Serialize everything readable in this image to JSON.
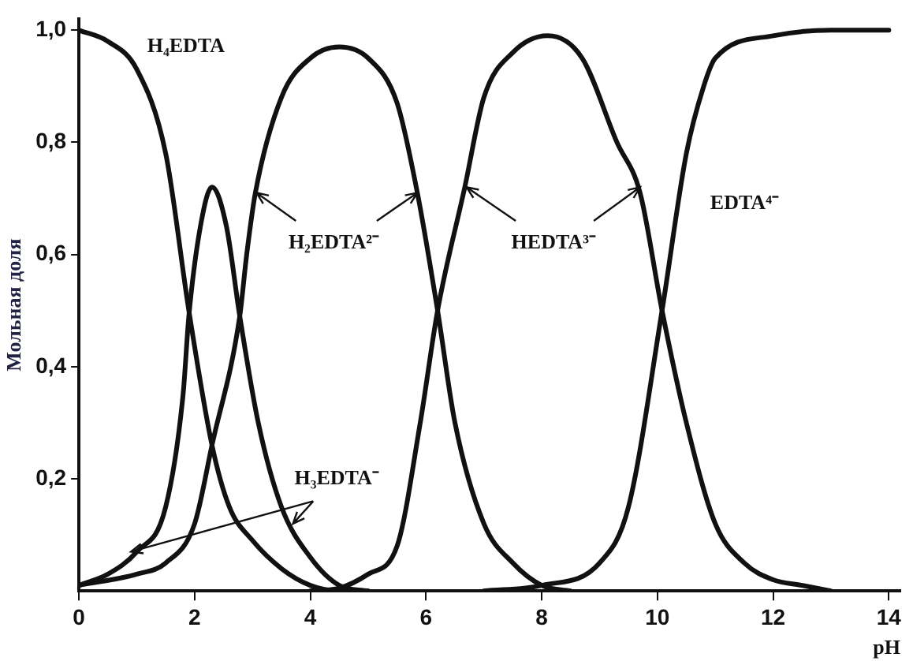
{
  "chart_data": {
    "type": "line",
    "xlabel": "pH",
    "ylabel": "Мольная доля",
    "xlim": [
      0,
      14.2
    ],
    "ylim": [
      0,
      1.02
    ],
    "xticks": [
      0,
      2,
      4,
      6,
      8,
      10,
      12,
      14
    ],
    "yticks": [
      {
        "value": 0.2,
        "label": "0,2"
      },
      {
        "value": 0.4,
        "label": "0,4"
      },
      {
        "value": 0.6,
        "label": "0,6"
      },
      {
        "value": 0.8,
        "label": "0,8"
      },
      {
        "value": 1.0,
        "label": "1,0"
      }
    ],
    "grid": false,
    "legend": false,
    "marker": "none",
    "line_style": "solid",
    "series": [
      {
        "color": "#111111",
        "x": [
          0,
          0.5,
          1,
          1.5,
          1.9,
          2.3,
          2.6,
          3,
          3.5,
          4,
          4.5,
          5
        ],
        "values": [
          1.0,
          0.98,
          0.93,
          0.78,
          0.5,
          0.26,
          0.15,
          0.09,
          0.04,
          0.01,
          0,
          0
        ]
      },
      {
        "color": "#111111",
        "x": [
          0,
          0.5,
          1,
          1.5,
          1.8,
          1.9,
          2.1,
          2.3,
          2.55,
          2.78,
          3.1,
          3.5,
          4,
          4.5,
          5
        ],
        "values": [
          0.01,
          0.03,
          0.07,
          0.15,
          0.35,
          0.49,
          0.65,
          0.72,
          0.65,
          0.49,
          0.3,
          0.15,
          0.06,
          0.01,
          0
        ]
      },
      {
        "color": "#111111",
        "x": [
          0,
          1,
          1.5,
          2,
          2.3,
          2.78,
          2.9,
          3.05,
          3.5,
          4,
          4.5,
          5,
          5.5,
          5.85,
          6.2,
          6.5,
          7,
          7.5,
          8,
          8.5
        ],
        "values": [
          0.01,
          0.03,
          0.05,
          0.12,
          0.26,
          0.49,
          0.6,
          0.71,
          0.88,
          0.95,
          0.97,
          0.95,
          0.87,
          0.71,
          0.5,
          0.3,
          0.12,
          0.05,
          0.01,
          0
        ]
      },
      {
        "color": "#111111",
        "x": [
          4,
          4.5,
          5,
          5.5,
          5.9,
          6.2,
          6.67,
          7,
          7.5,
          8.1,
          8.7,
          9.3,
          9.7,
          10.08,
          10.5,
          11,
          11.5,
          12,
          12.5,
          13
        ],
        "values": [
          0,
          0.005,
          0.03,
          0.08,
          0.3,
          0.5,
          0.72,
          0.88,
          0.96,
          0.99,
          0.95,
          0.8,
          0.71,
          0.5,
          0.3,
          0.12,
          0.05,
          0.02,
          0.01,
          0
        ]
      },
      {
        "color": "#111111",
        "x": [
          7,
          8,
          9,
          9.5,
          10.08,
          10.5,
          10.8,
          11,
          12,
          13,
          14
        ],
        "values": [
          0,
          0.01,
          0.05,
          0.15,
          0.5,
          0.78,
          0.9,
          0.95,
          0.99,
          1.0,
          1.0
        ]
      }
    ],
    "annotations": [
      "H₄EDTA",
      {
        "text": "H₃EDTA⁻",
        "x": 0.9,
        "y": 0.07
      },
      {
        "text": "H₂EDTA²⁻",
        "x": 3.07,
        "y": 0.71
      },
      {
        "text": "HEDTA³⁻",
        "x": 6.7,
        "y": 0.72
      },
      "EDTA⁴⁻"
    ]
  }
}
